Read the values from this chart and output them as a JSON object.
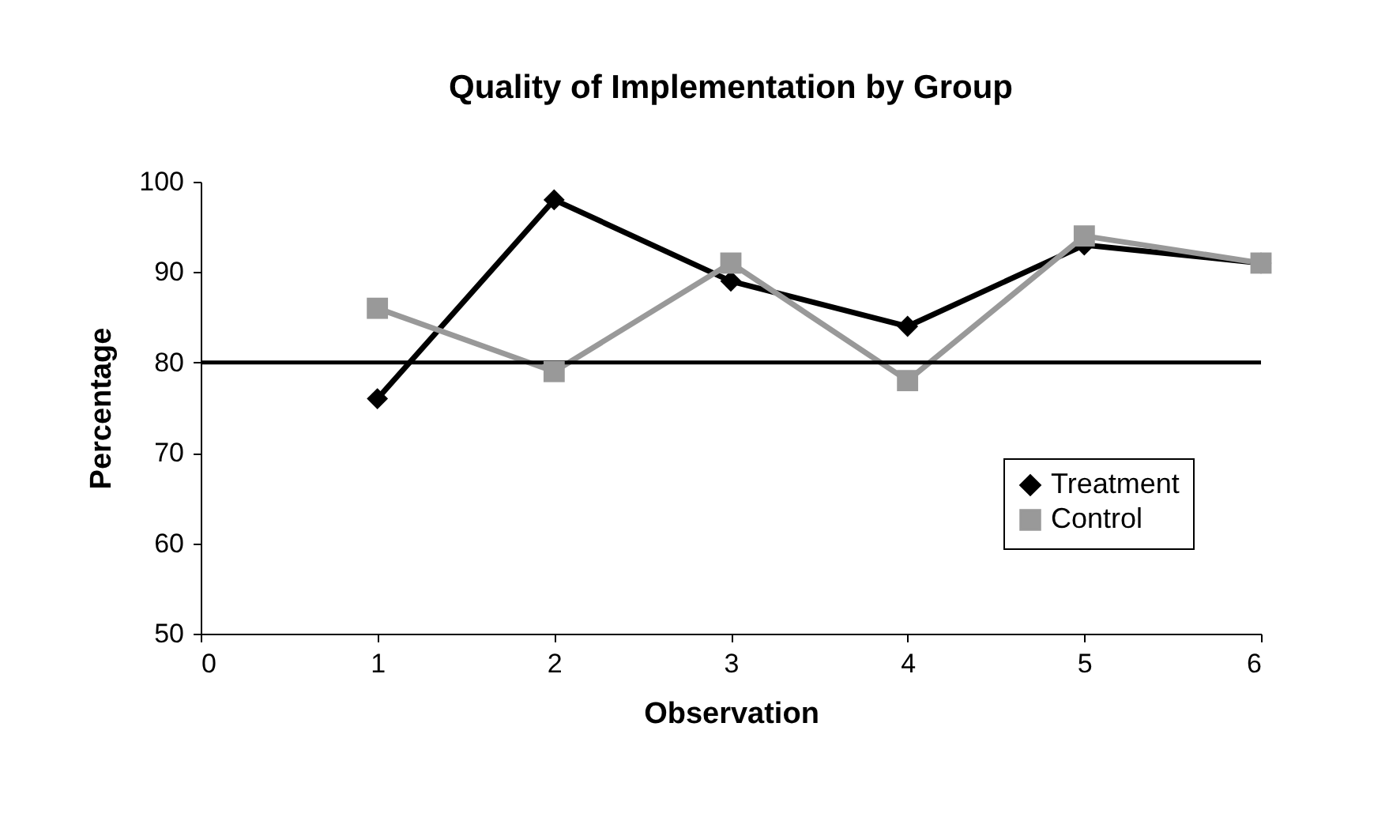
{
  "chart_data": {
    "type": "line",
    "title": "Quality of Implementation by Group",
    "xlabel": "Observation",
    "ylabel": "Percentage",
    "x": [
      1,
      2,
      3,
      4,
      5,
      6
    ],
    "series": [
      {
        "name": "Treatment",
        "color": "#000000",
        "marker": "diamond",
        "values": [
          76,
          98,
          89,
          84,
          93,
          91
        ]
      },
      {
        "name": "Control",
        "color": "#999999",
        "marker": "square",
        "values": [
          86,
          79,
          91,
          78,
          94,
          91
        ]
      }
    ],
    "xlim": [
      0,
      6
    ],
    "xticks": [
      0,
      1,
      2,
      3,
      4,
      5,
      6
    ],
    "ylim": [
      50,
      100
    ],
    "yticks": [
      50,
      60,
      70,
      80,
      90,
      100
    ],
    "ref_lines": [
      {
        "axis": "y",
        "value": 80,
        "color": "#000000"
      }
    ],
    "grid": false,
    "legend": "right",
    "line_style": "solid"
  }
}
